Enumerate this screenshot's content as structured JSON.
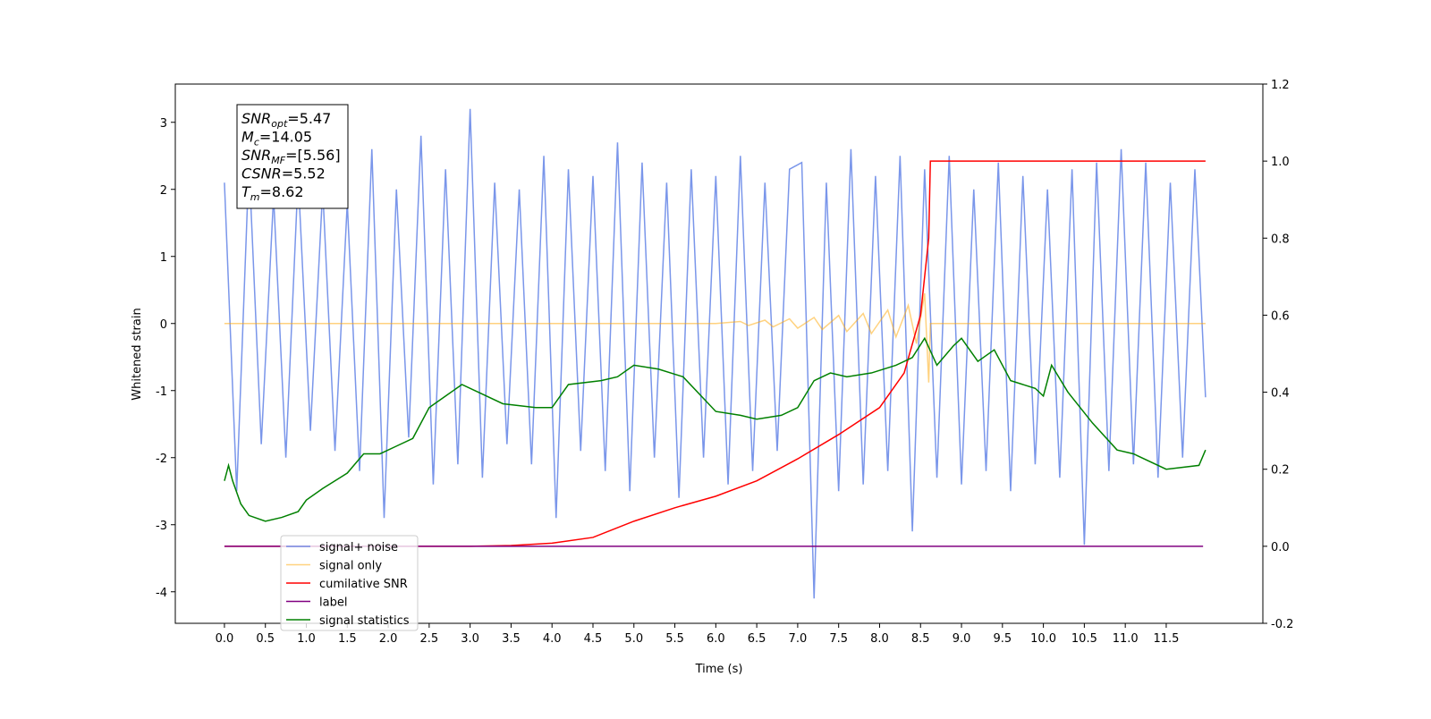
{
  "chart_data": {
    "type": "line",
    "xlabel": "Time (s)",
    "ylabel": "Whitened strain",
    "xlim": [
      -0.6,
      12.68
    ],
    "ylim": [
      -4.47,
      3.57
    ],
    "y2lim": [
      -0.2,
      1.2
    ],
    "xticks": [
      {
        "value": 0,
        "label": "0.0"
      },
      0.5,
      {
        "value": 1,
        "label": "1.0"
      },
      1.5,
      {
        "value": 2,
        "label": "2.0"
      },
      2.5,
      {
        "value": 3,
        "label": "3.0"
      },
      3.5,
      {
        "value": 4,
        "label": "4.0"
      },
      4.5,
      {
        "value": 5,
        "label": "5.0"
      },
      5.5,
      {
        "value": 6,
        "label": "6.0"
      },
      6.5,
      {
        "value": 7,
        "label": "7.0"
      },
      7.5,
      {
        "value": 8,
        "label": "8.0"
      },
      8.5,
      {
        "value": 9,
        "label": "9.0"
      },
      9.5,
      {
        "value": 10,
        "label": "10.0"
      },
      10.5,
      {
        "value": 11,
        "label": "11.0"
      },
      11.5
    ],
    "yticks": [
      -4,
      -3,
      -2,
      -1,
      0,
      1,
      2,
      3
    ],
    "y2ticks": [
      -0.2,
      {
        "value": 0,
        "label": "0.0"
      },
      0.2,
      0.4,
      0.6,
      0.8,
      {
        "value": 1,
        "label": "1.0"
      },
      1.2
    ],
    "legend": "lower left",
    "annotation": [
      {
        "base": "SNR",
        "sub": "opt",
        "rest": "=5.47"
      },
      {
        "base": "M",
        "sub": "c",
        "rest": "=14.05"
      },
      {
        "base": "SNR",
        "sub": "MF",
        "rest": "=[5.56]"
      },
      {
        "base": "CSNR",
        "sub": "",
        "rest": "=5.52"
      },
      {
        "base": "T",
        "sub": "m",
        "rest": "=8.62"
      }
    ],
    "series": [
      {
        "name": "signal+ noise",
        "color": "#4169e1",
        "alpha": 0.7,
        "x": [
          0,
          0.15,
          0.3,
          0.45,
          0.6,
          0.75,
          0.9,
          1.05,
          1.2,
          1.35,
          1.5,
          1.65,
          1.8,
          1.95,
          2.1,
          2.25,
          2.4,
          2.55,
          2.7,
          2.85,
          3.0,
          3.15,
          3.3,
          3.45,
          3.6,
          3.75,
          3.9,
          4.05,
          4.2,
          4.35,
          4.5,
          4.65,
          4.8,
          4.95,
          5.1,
          5.25,
          5.4,
          5.55,
          5.7,
          5.85,
          6.0,
          6.15,
          6.3,
          6.45,
          6.6,
          6.75,
          6.9,
          7.05,
          7.2,
          7.35,
          7.5,
          7.65,
          7.8,
          7.95,
          8.1,
          8.25,
          8.4,
          8.55,
          8.7,
          8.85,
          9.0,
          9.15,
          9.3,
          9.45,
          9.6,
          9.75,
          9.9,
          10.05,
          10.2,
          10.35,
          10.5,
          10.65,
          10.8,
          10.95,
          11.1,
          11.25,
          11.4,
          11.55,
          11.7,
          11.85,
          11.98
        ],
        "values": [
          2.1,
          -2.5,
          2.4,
          -1.8,
          1.9,
          -2.0,
          2.2,
          -1.6,
          2.0,
          -1.9,
          1.8,
          -2.2,
          2.6,
          -2.9,
          2.0,
          -1.7,
          2.8,
          -2.4,
          2.3,
          -2.1,
          3.2,
          -2.3,
          2.1,
          -1.8,
          2.0,
          -2.1,
          2.5,
          -2.9,
          2.3,
          -1.9,
          2.2,
          -2.2,
          2.7,
          -2.5,
          2.4,
          -2.0,
          2.1,
          -2.6,
          2.3,
          -2.0,
          2.2,
          -2.4,
          2.5,
          -2.2,
          2.1,
          -1.9,
          2.3,
          2.4,
          -4.1,
          2.1,
          -2.5,
          2.6,
          -2.4,
          2.2,
          -2.2,
          2.5,
          -3.1,
          2.3,
          -2.3,
          2.5,
          -2.4,
          2.0,
          -2.2,
          2.4,
          -2.5,
          2.2,
          -2.1,
          2.0,
          -2.3,
          2.3,
          -3.3,
          2.4,
          -2.2,
          2.6,
          -2.1,
          2.4,
          -2.3,
          2.1,
          -2.0,
          2.3,
          -1.1
        ]
      },
      {
        "name": "signal only",
        "color": "#ffa500",
        "alpha": 0.5,
        "x": [
          0,
          6.0,
          6.3,
          6.4,
          6.6,
          6.7,
          6.9,
          7.0,
          7.2,
          7.3,
          7.5,
          7.6,
          7.8,
          7.9,
          8.1,
          8.2,
          8.35,
          8.45,
          8.55,
          8.6,
          8.62,
          11.98
        ],
        "values": [
          0,
          0,
          0.03,
          -0.03,
          0.05,
          -0.05,
          0.07,
          -0.07,
          0.09,
          -0.09,
          0.12,
          -0.12,
          0.15,
          -0.15,
          0.2,
          -0.2,
          0.27,
          -0.3,
          0.45,
          -0.88,
          0,
          0
        ]
      },
      {
        "name": "cumilative SNR",
        "color": "#ff0000",
        "axis": "y2",
        "x": [
          0,
          3.0,
          3.5,
          4.0,
          4.5,
          5.0,
          5.5,
          6.0,
          6.5,
          7.0,
          7.5,
          8.0,
          8.3,
          8.5,
          8.6,
          8.62,
          11.98
        ],
        "values": [
          0,
          0,
          0.002,
          0.008,
          0.023,
          0.065,
          0.1,
          0.13,
          0.17,
          0.227,
          0.29,
          0.36,
          0.45,
          0.6,
          0.8,
          1.0,
          1.0
        ]
      },
      {
        "name": "label",
        "color": "#800080",
        "axis": "y2",
        "x": [
          0,
          11.95
        ],
        "values": [
          0,
          0
        ]
      },
      {
        "name": "signal statistics",
        "color": "#008000",
        "axis": "y2",
        "x": [
          0,
          0.05,
          0.1,
          0.2,
          0.3,
          0.5,
          0.7,
          0.9,
          1.0,
          1.2,
          1.5,
          1.7,
          1.9,
          2.1,
          2.3,
          2.5,
          2.7,
          2.9,
          3.1,
          3.4,
          3.8,
          4.0,
          4.2,
          4.6,
          4.8,
          5.0,
          5.3,
          5.6,
          6.0,
          6.3,
          6.5,
          6.8,
          7.0,
          7.2,
          7.4,
          7.6,
          7.9,
          8.2,
          8.4,
          8.55,
          8.7,
          8.9,
          9.0,
          9.2,
          9.4,
          9.6,
          9.9,
          10.0,
          10.1,
          10.3,
          10.6,
          10.9,
          11.1,
          11.5,
          11.9,
          11.98
        ],
        "values": [
          0.17,
          0.21,
          0.17,
          0.11,
          0.08,
          0.065,
          0.075,
          0.09,
          0.12,
          0.15,
          0.19,
          0.24,
          0.24,
          0.26,
          0.28,
          0.36,
          0.39,
          0.42,
          0.4,
          0.37,
          0.36,
          0.36,
          0.42,
          0.43,
          0.44,
          0.47,
          0.46,
          0.44,
          0.35,
          0.34,
          0.33,
          0.34,
          0.36,
          0.43,
          0.45,
          0.44,
          0.45,
          0.47,
          0.49,
          0.54,
          0.47,
          0.52,
          0.54,
          0.48,
          0.51,
          0.43,
          0.41,
          0.39,
          0.47,
          0.4,
          0.32,
          0.25,
          0.24,
          0.2,
          0.21,
          0.25
        ]
      }
    ]
  }
}
